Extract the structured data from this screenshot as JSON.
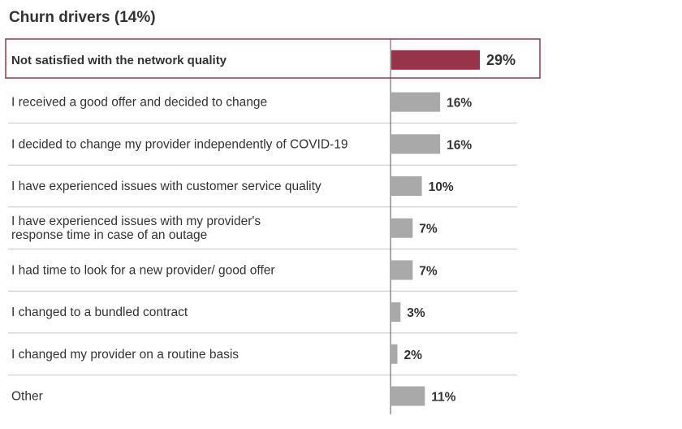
{
  "chart_data": {
    "type": "bar",
    "orientation": "horizontal",
    "title": "Churn drivers (14%)",
    "categories": [
      "Not satisfied with the network quality",
      "I received a good offer and decided to change",
      "I decided to change my provider independently of COVID-19",
      "I have experienced issues with customer service quality",
      "I have experienced issues with my provider's response time in case of an outage",
      "I had time to look for a new provider/ good offer",
      "I changed to a bundled contract",
      "I changed my provider on a routine basis",
      "Other"
    ],
    "category_lines": [
      [
        "Not satisfied with the network quality"
      ],
      [
        "I received a good offer and decided to change"
      ],
      [
        "I decided to change my provider independently of COVID-19"
      ],
      [
        "I have experienced issues with customer service quality"
      ],
      [
        "I have experienced issues with my provider's",
        "response time in case of an outage"
      ],
      [
        "I had time to look for a new provider/ good offer"
      ],
      [
        "I changed to a bundled contract"
      ],
      [
        "I changed my provider on a routine basis"
      ],
      [
        "Other"
      ]
    ],
    "values": [
      29,
      16,
      16,
      10,
      7,
      7,
      3,
      2,
      11
    ],
    "labels": [
      "29%",
      "16%",
      "16%",
      "10%",
      "7%",
      "7%",
      "3%",
      "2%",
      "11%"
    ],
    "highlight_index": 0,
    "colors": {
      "highlight": "#97344a",
      "default": "#a9a9a9",
      "grid": "#c8c8c8",
      "axis": "#555555"
    },
    "xlim": [
      0,
      35
    ],
    "grid": false,
    "legend": "none"
  }
}
